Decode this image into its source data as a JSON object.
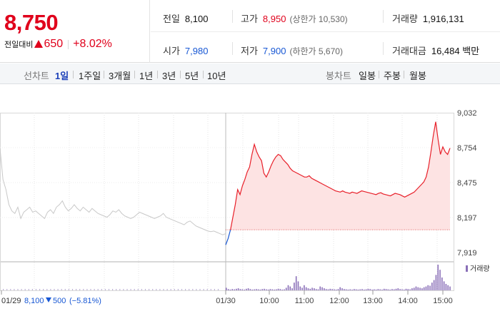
{
  "quote": {
    "price": "8,750",
    "change_label": "전일대비",
    "change_amount": "650",
    "change_percent": "+8.02%",
    "colors": {
      "up": "#e0001b",
      "down": "#1757d4"
    }
  },
  "stats": {
    "prev_close": {
      "label": "전일",
      "value": "8,100"
    },
    "high": {
      "label": "고가",
      "value": "8,950",
      "limit_text": "(상한가 10,530)"
    },
    "volume": {
      "label": "거래량",
      "value": "1,916,131"
    },
    "open": {
      "label": "시가",
      "value": "7,980"
    },
    "low": {
      "label": "저가",
      "value": "7,900",
      "limit_text": "(하한가 5,670)"
    },
    "turnover": {
      "label": "거래대금",
      "value": "16,484 백만"
    }
  },
  "toolbar": {
    "line_chart_label": "선차트",
    "line_periods": [
      "1일",
      "1주일",
      "3개월",
      "1년",
      "3년",
      "5년",
      "10년"
    ],
    "active_period": "1일",
    "candle_chart_label": "봉차트",
    "candle_periods": [
      "일봉",
      "주봉",
      "월봉"
    ]
  },
  "chart_data": {
    "type": "line",
    "y_ticks": [
      "9,032",
      "8,754",
      "8,475",
      "8,197",
      "7,919"
    ],
    "ylim": [
      7919,
      9032
    ],
    "x_ticks": [
      "01/30",
      "10:00",
      "11:00",
      "12:00",
      "13:00",
      "14:00",
      "15:00"
    ],
    "reference_price": 8100,
    "volume_legend": "거래량",
    "previous_day": {
      "date": "01/29",
      "close": "8,100",
      "change": "500",
      "change_percent": "(−5.81%)"
    },
    "series": [
      {
        "name": "previous",
        "color": "#c8c8c8",
        "values": [
          8750,
          8500,
          8420,
          8300,
          8250,
          8230,
          8280,
          8190,
          8240,
          8260,
          8280,
          8240,
          8250,
          8230,
          8210,
          8190,
          8240,
          8260,
          8230,
          8280,
          8300,
          8330,
          8280,
          8250,
          8270,
          8300,
          8270,
          8250,
          8280,
          8260,
          8240,
          8270,
          8250,
          8230,
          8220,
          8210,
          8200,
          8220,
          8250,
          8240,
          8260,
          8230,
          8210,
          8200,
          8190,
          8200,
          8220,
          8240,
          8230,
          8220,
          8210,
          8200,
          8190,
          8200,
          8210,
          8230,
          8200,
          8190,
          8180,
          8170,
          8160,
          8150,
          8140,
          8160,
          8170,
          8150,
          8130,
          8120,
          8110,
          8100,
          8090,
          8085,
          8090,
          8080,
          8070,
          8060,
          8070
        ]
      },
      {
        "name": "today",
        "color": "#e8202a",
        "values": [
          7980,
          8030,
          8100,
          8200,
          8300,
          8420,
          8380,
          8450,
          8500,
          8560,
          8600,
          8700,
          8780,
          8720,
          8680,
          8650,
          8550,
          8520,
          8560,
          8610,
          8650,
          8680,
          8700,
          8690,
          8660,
          8640,
          8620,
          8590,
          8570,
          8560,
          8550,
          8540,
          8530,
          8520,
          8520,
          8530,
          8510,
          8500,
          8490,
          8480,
          8470,
          8460,
          8450,
          8440,
          8430,
          8420,
          8410,
          8405,
          8400,
          8410,
          8400,
          8395,
          8390,
          8400,
          8395,
          8390,
          8400,
          8410,
          8405,
          8400,
          8395,
          8390,
          8385,
          8380,
          8390,
          8395,
          8385,
          8380,
          8375,
          8370,
          8380,
          8390,
          8385,
          8380,
          8370,
          8360,
          8370,
          8380,
          8390,
          8400,
          8420,
          8440,
          8460,
          8480,
          8520,
          8600,
          8720,
          8850,
          8960,
          8820,
          8700,
          8760,
          8720,
          8700,
          8750
        ]
      }
    ],
    "volume": [
      0.1,
      0.05,
      0.03,
      0.05,
      0.04,
      0.06,
      0.08,
      0.05,
      0.04,
      0.03,
      0.06,
      0.08,
      0.05,
      0.03,
      0.04,
      0.05,
      0.04,
      0.03,
      0.05,
      0.06,
      0.04,
      0.03,
      0.05,
      0.04,
      0.03,
      0.04,
      0.06,
      0.05,
      0.03,
      0.04,
      0.1,
      0.2,
      0.15,
      0.08,
      0.3,
      0.55,
      0.35,
      0.15,
      0.1,
      0.2,
      0.12,
      0.08,
      0.06,
      0.1,
      0.08,
      0.05,
      0.04,
      0.15,
      0.12,
      0.08,
      0.05,
      0.04,
      0.06,
      0.05,
      0.04,
      0.03,
      0.05,
      0.12,
      0.08,
      0.05,
      0.04,
      0.03,
      0.04,
      0.03,
      0.05,
      0.04,
      0.03,
      0.04,
      0.05,
      0.03,
      0.04,
      0.06,
      0.05,
      0.03,
      0.04,
      0.03,
      0.05,
      0.04,
      0.03,
      0.06,
      0.05,
      0.04,
      0.03,
      0.05,
      0.04,
      0.06,
      0.08,
      0.05,
      0.04,
      0.03,
      0.06,
      0.05,
      0.04,
      0.08,
      0.1,
      0.15,
      0.12,
      0.1,
      0.08,
      0.12,
      0.15,
      0.2,
      0.18,
      0.3,
      0.4,
      0.6,
      1.0,
      0.8,
      0.5,
      0.35,
      0.25,
      0.2,
      0.15
    ]
  }
}
